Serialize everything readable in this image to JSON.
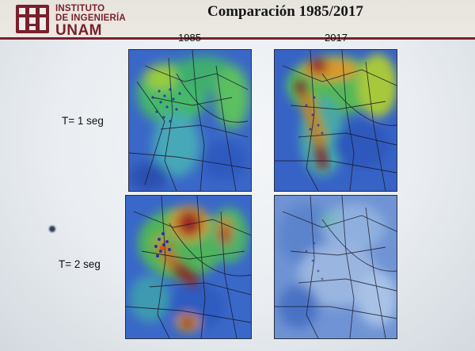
{
  "header": {
    "logo": {
      "line1": "INSTITUTO",
      "line2": "DE INGENIERÍA",
      "line3": "UNAM"
    },
    "title": "Comparación 1985/2017"
  },
  "columns": [
    {
      "label": "1985"
    },
    {
      "label": "2017"
    }
  ],
  "rows": [
    {
      "label": "T= 1 seg"
    },
    {
      "label": "T= 2 seg"
    }
  ],
  "colors": {
    "brand": "#7a1f2b"
  }
}
